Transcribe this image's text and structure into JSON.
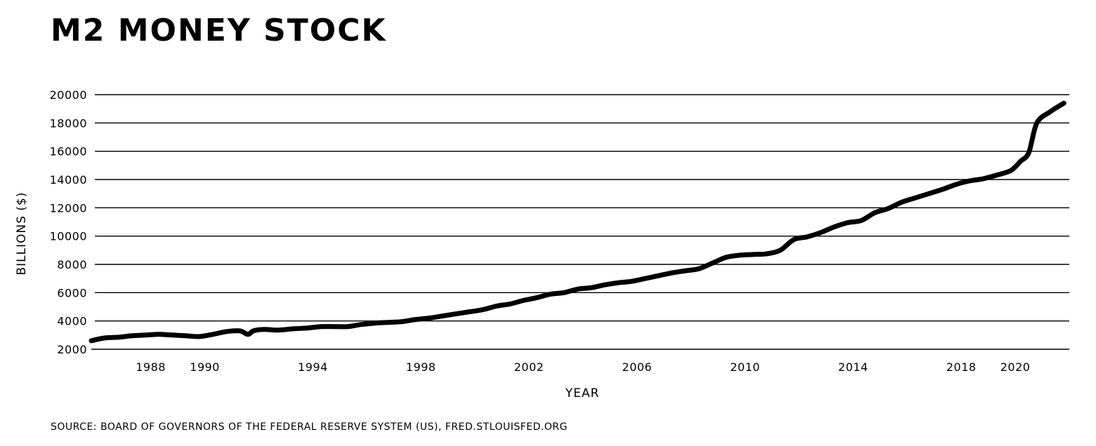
{
  "chart_data": {
    "type": "line",
    "title": "M2 MONEY STOCK",
    "xlabel": "YEAR",
    "ylabel": "BILLIONS ($)",
    "source": "SOURCE: BOARD OF GOVERNORS OF THE FEDERAL RESERVE SYSTEM (US), FRED.STLOUISFED.ORG",
    "xlim": [
      1985.8,
      2022.0
    ],
    "ylim": [
      2000,
      20000
    ],
    "grid": true,
    "x_ticks": [
      1988,
      1990,
      1994,
      1998,
      2002,
      2006,
      2010,
      2014,
      2018,
      2020
    ],
    "y_ticks": [
      2000,
      4000,
      6000,
      8000,
      10000,
      12000,
      14000,
      16000,
      18000,
      20000
    ],
    "colors": {
      "line": "#000000",
      "grid": "#000000",
      "background": "#ffffff"
    },
    "series": [
      {
        "x": [
          1985.8,
          1986.3,
          1986.8,
          1987.3,
          1987.8,
          1988.3,
          1988.8,
          1989.3,
          1989.8,
          1990.3,
          1990.8,
          1991.3,
          1991.6,
          1991.8,
          1992.2,
          1992.7,
          1993.3,
          1993.8,
          1994.3,
          1994.8,
          1995.3,
          1995.8,
          1996.3,
          1996.8,
          1997.3,
          1997.8,
          1998.3,
          1998.8,
          1999.3,
          1999.8,
          2000.3,
          2000.8,
          2001.3,
          2001.8,
          2002.3,
          2002.8,
          2003.3,
          2003.8,
          2004.3,
          2004.8,
          2005.3,
          2005.8,
          2006.3,
          2006.8,
          2007.3,
          2007.8,
          2008.3,
          2008.8,
          2009.3,
          2009.8,
          2010.3,
          2010.8,
          2011.3,
          2011.8,
          2012.3,
          2012.8,
          2013.3,
          2013.8,
          2014.3,
          2014.8,
          2015.3,
          2015.8,
          2016.3,
          2016.8,
          2017.3,
          2017.8,
          2018.3,
          2018.8,
          2019.3,
          2019.8,
          2020.0,
          2020.2,
          2020.5,
          2020.8,
          2021.3,
          2021.8
        ],
        "y": [
          2600,
          2800,
          2850,
          2950,
          3000,
          3050,
          3000,
          2950,
          2900,
          3050,
          3250,
          3300,
          3050,
          3300,
          3400,
          3350,
          3450,
          3500,
          3600,
          3600,
          3600,
          3750,
          3850,
          3900,
          3950,
          4100,
          4200,
          4350,
          4500,
          4650,
          4800,
          5050,
          5200,
          5450,
          5650,
          5900,
          6000,
          6250,
          6350,
          6550,
          6700,
          6800,
          7000,
          7200,
          7400,
          7550,
          7700,
          8100,
          8500,
          8650,
          8700,
          8750,
          9000,
          9750,
          9950,
          10250,
          10650,
          10950,
          11100,
          11650,
          11950,
          12400,
          12700,
          13000,
          13300,
          13650,
          13900,
          14050,
          14300,
          14600,
          14900,
          15300,
          15900,
          18000,
          18800,
          19400
        ]
      }
    ]
  }
}
